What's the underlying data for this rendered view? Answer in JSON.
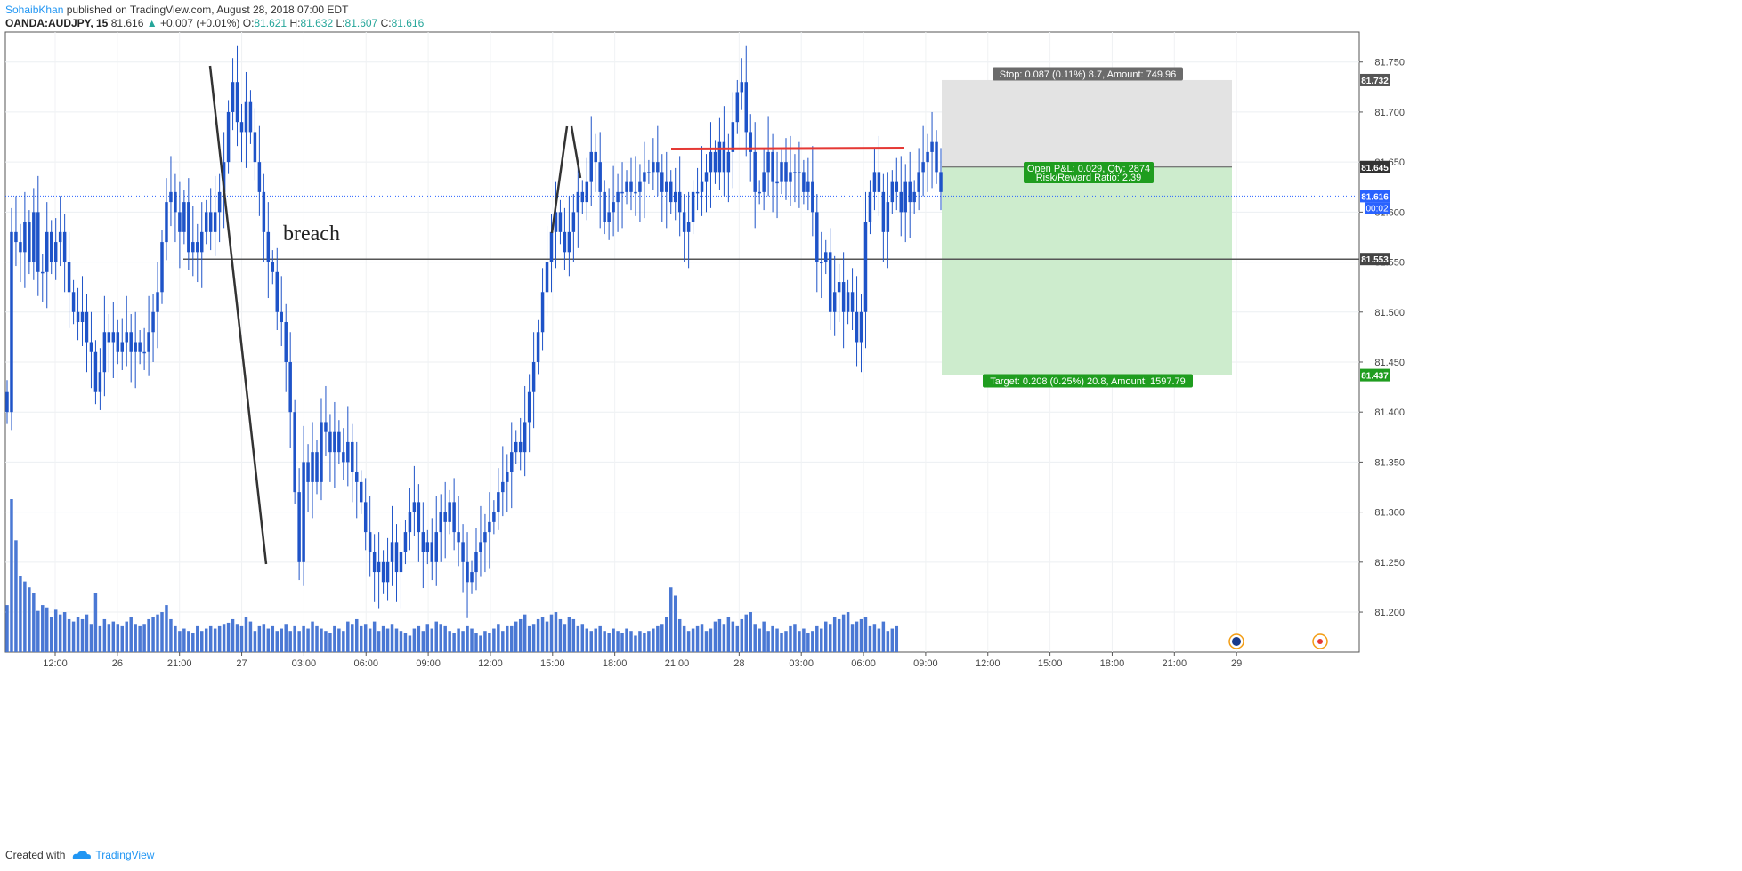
{
  "header": {
    "author": "SohaibKhan",
    "published": "published on TradingView.com, August 28, 2018 07:00 EDT",
    "symbol": "OANDA:AUDJPY, 15",
    "last": "81.616",
    "change": "+0.007 (+0.01%)",
    "o_label": "O:",
    "o": "81.621",
    "h_label": "H:",
    "h": "81.632",
    "l_label": "L:",
    "l": "81.607",
    "c_label": "C:",
    "c": "81.616"
  },
  "footer": {
    "created": "Created with",
    "brand": "TradingView"
  },
  "chart_data": {
    "type": "candlestick",
    "title": "OANDA:AUDJPY, 15",
    "ylim": [
      81.16,
      81.78
    ],
    "grid": true,
    "x_tick_labels": [
      "12:00",
      "26",
      "21:00",
      "27",
      "03:00",
      "06:00",
      "09:00",
      "12:00",
      "15:00",
      "18:00",
      "21:00",
      "28",
      "03:00",
      "06:00",
      "09:00",
      "12:00",
      "15:00",
      "18:00",
      "21:00",
      "29"
    ],
    "y_tick_labels": [
      "81.750",
      "81.700",
      "81.650",
      "81.600",
      "81.550",
      "81.500",
      "81.450",
      "81.400",
      "81.350",
      "81.300",
      "81.250",
      "81.200"
    ],
    "y_ticks": [
      81.75,
      81.7,
      81.65,
      81.6,
      81.55,
      81.5,
      81.45,
      81.4,
      81.35,
      81.3,
      81.25,
      81.2
    ],
    "price_labels": [
      {
        "value": 81.732,
        "text": "81.732",
        "color": "#555555"
      },
      {
        "value": 81.645,
        "text": "81.645",
        "color": "#333333"
      },
      {
        "value": 81.616,
        "text": "81.616",
        "color": "#2962ff"
      },
      {
        "value": 81.553,
        "text": "81.553",
        "color": "#444444"
      },
      {
        "value": 81.437,
        "text": "81.437",
        "color": "#1f9d1f"
      }
    ],
    "countdown": "00:02",
    "position": {
      "entry": 81.645,
      "stop": 81.732,
      "target": 81.437,
      "stop_text": "Stop: 0.087 (0.11%) 8.7, Amount: 749.96",
      "pl_text": "Open P&L: 0.029, Qty: 2874",
      "rr_text": "Risk/Reward Ratio: 2.39",
      "target_text": "Target: 0.208 (0.25%) 20.8, Amount: 1597.79"
    },
    "annotations": [
      {
        "type": "text",
        "text": "breach"
      },
      {
        "type": "hline",
        "value": 81.553,
        "color": "#555555"
      },
      {
        "type": "segment",
        "value": 81.663,
        "color": "#e53935"
      }
    ],
    "closes": [
      81.4,
      81.58,
      81.57,
      81.56,
      81.59,
      81.55,
      81.6,
      81.54,
      81.54,
      81.58,
      81.55,
      81.57,
      81.58,
      81.55,
      81.52,
      81.5,
      81.49,
      81.5,
      81.47,
      81.46,
      81.42,
      81.44,
      81.48,
      81.47,
      81.48,
      81.46,
      81.47,
      81.48,
      81.46,
      81.47,
      81.46,
      81.46,
      81.48,
      81.5,
      81.52,
      81.57,
      81.61,
      81.62,
      81.6,
      81.58,
      81.61,
      81.56,
      81.57,
      81.56,
      81.58,
      81.6,
      81.58,
      81.6,
      81.62,
      81.65,
      81.7,
      81.73,
      81.69,
      81.68,
      81.71,
      81.68,
      81.65,
      81.62,
      81.58,
      81.55,
      81.54,
      81.5,
      81.49,
      81.45,
      81.4,
      81.32,
      81.25,
      81.35,
      81.33,
      81.36,
      81.33,
      81.39,
      81.38,
      81.36,
      81.38,
      81.36,
      81.35,
      81.37,
      81.34,
      81.33,
      81.31,
      81.28,
      81.26,
      81.24,
      81.25,
      81.23,
      81.25,
      81.27,
      81.24,
      81.26,
      81.28,
      81.3,
      81.31,
      81.28,
      81.26,
      81.27,
      81.25,
      81.28,
      81.3,
      81.29,
      81.31,
      81.28,
      81.27,
      81.25,
      81.23,
      81.24,
      81.26,
      81.27,
      81.28,
      81.29,
      81.3,
      81.32,
      81.33,
      81.34,
      81.36,
      81.37,
      81.36,
      81.39,
      81.42,
      81.45,
      81.48,
      81.52,
      81.55,
      81.58,
      81.6,
      81.58,
      81.56,
      81.58,
      81.6,
      81.62,
      81.61,
      81.63,
      81.66,
      81.65,
      81.62,
      81.59,
      81.6,
      81.61,
      81.62,
      81.62,
      81.63,
      81.62,
      81.62,
      81.63,
      81.64,
      81.64,
      81.65,
      81.64,
      81.62,
      81.63,
      81.61,
      81.62,
      81.6,
      81.58,
      81.59,
      81.62,
      81.62,
      81.63,
      81.64,
      81.66,
      81.64,
      81.67,
      81.64,
      81.66,
      81.69,
      81.72,
      81.73,
      81.68,
      81.66,
      81.62,
      81.62,
      81.64,
      81.66,
      81.63,
      81.63,
      81.65,
      81.63,
      81.64,
      81.64,
      81.64,
      81.62,
      81.63,
      81.6,
      81.55,
      81.55,
      81.56,
      81.5,
      81.52,
      81.53,
      81.5,
      81.52,
      81.5,
      81.47,
      81.5,
      81.59,
      81.62,
      81.64,
      81.62,
      81.58,
      81.61,
      81.63,
      81.62,
      81.6,
      81.63,
      81.61,
      81.62,
      81.64,
      81.65,
      81.66,
      81.67,
      81.64,
      81.62
    ],
    "volumes": [
      40,
      130,
      95,
      65,
      60,
      55,
      50,
      35,
      40,
      38,
      30,
      36,
      32,
      34,
      28,
      26,
      30,
      28,
      32,
      24,
      50,
      22,
      28,
      24,
      26,
      24,
      22,
      26,
      30,
      24,
      22,
      24,
      28,
      30,
      32,
      34,
      40,
      28,
      22,
      18,
      20,
      18,
      16,
      22,
      18,
      20,
      22,
      20,
      22,
      24,
      25,
      28,
      24,
      22,
      30,
      26,
      18,
      22,
      24,
      20,
      22,
      18,
      20,
      24,
      18,
      22,
      18,
      22,
      20,
      26,
      22,
      20,
      18,
      16,
      22,
      20,
      18,
      26,
      24,
      28,
      22,
      24,
      20,
      26,
      18,
      22,
      20,
      24,
      20,
      18,
      16,
      14,
      20,
      22,
      18,
      24,
      20,
      26,
      24,
      22,
      18,
      16,
      20,
      18,
      22,
      20,
      16,
      14,
      18,
      16,
      20,
      24,
      18,
      22,
      22,
      26,
      28,
      32,
      22,
      24,
      28,
      30,
      26,
      32,
      34,
      28,
      24,
      30,
      28,
      22,
      24,
      20,
      18,
      20,
      22,
      18,
      16,
      20,
      18,
      16,
      20,
      18,
      14,
      18,
      16,
      18,
      20,
      22,
      24,
      30,
      55,
      48,
      28,
      22,
      18,
      20,
      22,
      24,
      18,
      20,
      26,
      28,
      24,
      30,
      26,
      22,
      28,
      32,
      34,
      24,
      20,
      26,
      18,
      22,
      20,
      16,
      18,
      22,
      24,
      18,
      20,
      16,
      18,
      22,
      20,
      26,
      24,
      30,
      28,
      32,
      34,
      24,
      26,
      28,
      30,
      22,
      24,
      20,
      26,
      18,
      20,
      22
    ]
  }
}
